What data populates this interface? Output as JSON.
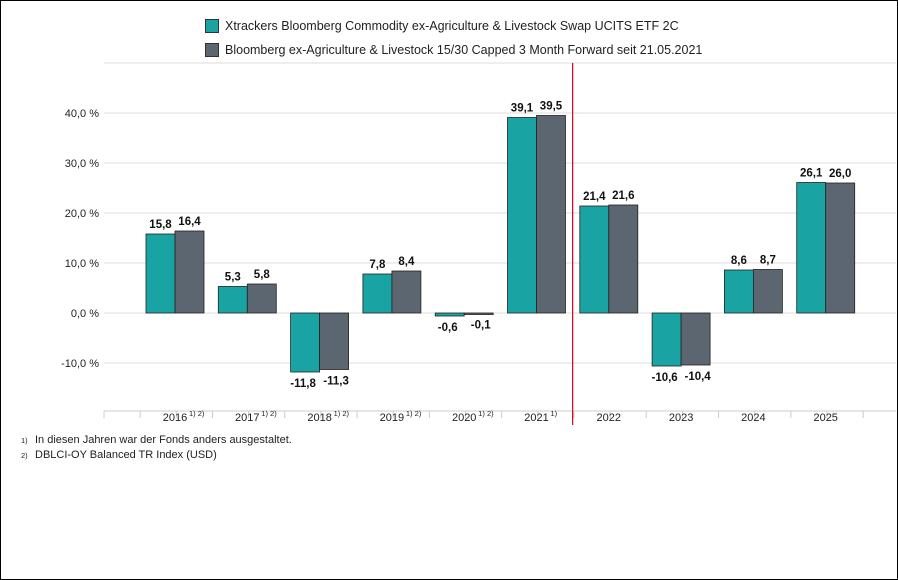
{
  "colors": {
    "fund": "#1aa3a3",
    "index": "#5b6670",
    "divider": "#d0021b",
    "grid": "#dddddd"
  },
  "legend": [
    {
      "label": "Xtrackers Bloomberg Commodity ex-Agriculture & Livestock Swap UCITS ETF 2C"
    },
    {
      "label": "Bloomberg ex-Agriculture & Livestock 15/30 Capped 3 Month Forward seit 21.05.2021"
    }
  ],
  "footnotes": [
    {
      "mark": "1)",
      "text": "In diesen Jahren war der Fonds anders ausgestaltet."
    },
    {
      "mark": "2)",
      "text": "DBLCI-OY Balanced TR Index (USD)"
    }
  ],
  "chart_data": {
    "type": "bar",
    "categories": [
      "2016",
      "2017",
      "2018",
      "2019",
      "2020",
      "2021",
      "2022",
      "2023",
      "2024",
      "2025"
    ],
    "category_footnotes": [
      "1) 2)",
      "1) 2)",
      "1) 2)",
      "1) 2)",
      "1) 2)",
      "1)",
      "",
      "",
      "",
      ""
    ],
    "series": [
      {
        "name": "Xtrackers Bloomberg Commodity ex-Agriculture & Livestock Swap UCITS ETF 2C",
        "values": [
          15.8,
          5.3,
          -11.8,
          7.8,
          -0.6,
          39.1,
          21.4,
          -10.6,
          8.6,
          26.1
        ],
        "labels": [
          "15,8",
          "5,3",
          "-11,8",
          "7,8",
          "-0,6",
          "39,1",
          "21,4",
          "-10,6",
          "8,6",
          "26,1"
        ]
      },
      {
        "name": "Bloomberg ex-Agriculture & Livestock 15/30 Capped 3 Month Forward seit 21.05.2021",
        "values": [
          16.4,
          5.8,
          -11.3,
          8.4,
          -0.1,
          39.5,
          21.6,
          -10.4,
          8.7,
          26.0
        ],
        "labels": [
          "16,4",
          "5,8",
          "-11,3",
          "8,4",
          "-0,1",
          "39,5",
          "21,6",
          "-10,4",
          "8,7",
          "26,0"
        ]
      }
    ],
    "yticks": [
      -10,
      0,
      10,
      20,
      30,
      40
    ],
    "ytick_labels": [
      "-10,0 %",
      "0,0 %",
      "10,0 %",
      "20,0 %",
      "30,0 %",
      "40,0 %"
    ],
    "ylim": [
      -20,
      50
    ],
    "divider_between": [
      "2021",
      "2022"
    ],
    "grid": true
  }
}
